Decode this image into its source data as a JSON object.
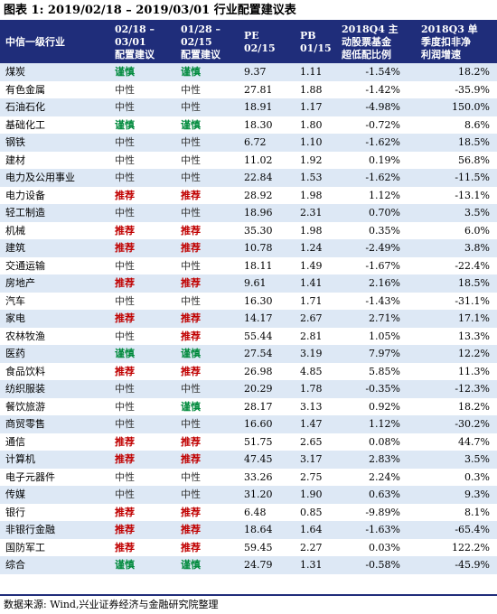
{
  "title": "图表 1:  2019/02/18 – 2019/03/01 行业配置建议表",
  "source": "数据来源:  Wind,兴业证券经济与金融研究院整理",
  "colors": {
    "header_bg": "#1f2d7a",
    "alt_row": "#dde8f5",
    "recommend": "#c00000",
    "cautious": "#008a3c",
    "neutral": "#333333"
  },
  "headers": {
    "name": [
      "中信一级行业"
    ],
    "rec_current": [
      "02/18   –",
      "03/01",
      "配置建议"
    ],
    "rec_previous": [
      "01/28   –",
      "02/15",
      "配置建议"
    ],
    "pe": [
      "PE",
      "02/15"
    ],
    "pb": [
      "PB",
      "01/15"
    ],
    "fund": [
      "2018Q4  主",
      "动股票基金",
      "超低配比例"
    ],
    "profit": [
      "2018Q3  单",
      "季度扣非净",
      "利润增速"
    ]
  },
  "rows": [
    {
      "name": "煤炭",
      "rec1": "谨慎",
      "rec2": "谨慎",
      "pe": "9.37",
      "pb": "1.11",
      "fund": "-1.54%",
      "profit": "18.2%"
    },
    {
      "name": "有色金属",
      "rec1": "中性",
      "rec2": "中性",
      "pe": "27.81",
      "pb": "1.88",
      "fund": "-1.42%",
      "profit": "-35.9%"
    },
    {
      "name": "石油石化",
      "rec1": "中性",
      "rec2": "中性",
      "pe": "18.91",
      "pb": "1.17",
      "fund": "-4.98%",
      "profit": "150.0%"
    },
    {
      "name": "基础化工",
      "rec1": "谨慎",
      "rec2": "谨慎",
      "pe": "18.30",
      "pb": "1.80",
      "fund": "-0.72%",
      "profit": "8.6%"
    },
    {
      "name": "钢铁",
      "rec1": "中性",
      "rec2": "中性",
      "pe": "6.72",
      "pb": "1.10",
      "fund": "-1.62%",
      "profit": "18.5%"
    },
    {
      "name": "建材",
      "rec1": "中性",
      "rec2": "中性",
      "pe": "11.02",
      "pb": "1.92",
      "fund": "0.19%",
      "profit": "56.8%"
    },
    {
      "name": "电力及公用事业",
      "rec1": "中性",
      "rec2": "中性",
      "pe": "22.84",
      "pb": "1.53",
      "fund": "-1.62%",
      "profit": "-11.5%"
    },
    {
      "name": "电力设备",
      "rec1": "推荐",
      "rec2": "推荐",
      "pe": "28.92",
      "pb": "1.98",
      "fund": "1.12%",
      "profit": "-13.1%"
    },
    {
      "name": "轻工制造",
      "rec1": "中性",
      "rec2": "中性",
      "pe": "18.96",
      "pb": "2.31",
      "fund": "0.70%",
      "profit": "3.5%"
    },
    {
      "name": "机械",
      "rec1": "推荐",
      "rec2": "推荐",
      "pe": "35.30",
      "pb": "1.98",
      "fund": "0.35%",
      "profit": "6.0%"
    },
    {
      "name": "建筑",
      "rec1": "推荐",
      "rec2": "推荐",
      "pe": "10.78",
      "pb": "1.24",
      "fund": "-2.49%",
      "profit": "3.8%"
    },
    {
      "name": "交通运输",
      "rec1": "中性",
      "rec2": "中性",
      "pe": "18.11",
      "pb": "1.49",
      "fund": "-1.67%",
      "profit": "-22.4%"
    },
    {
      "name": "房地产",
      "rec1": "推荐",
      "rec2": "推荐",
      "pe": "9.61",
      "pb": "1.41",
      "fund": "2.16%",
      "profit": "18.5%"
    },
    {
      "name": "汽车",
      "rec1": "中性",
      "rec2": "中性",
      "pe": "16.30",
      "pb": "1.71",
      "fund": "-1.43%",
      "profit": "-31.1%"
    },
    {
      "name": "家电",
      "rec1": "推荐",
      "rec2": "推荐",
      "pe": "14.17",
      "pb": "2.67",
      "fund": "2.71%",
      "profit": "17.1%"
    },
    {
      "name": "农林牧渔",
      "rec1": "中性",
      "rec2": "推荐",
      "pe": "55.44",
      "pb": "2.81",
      "fund": "1.05%",
      "profit": "13.3%"
    },
    {
      "name": "医药",
      "rec1": "谨慎",
      "rec2": "谨慎",
      "pe": "27.54",
      "pb": "3.19",
      "fund": "7.97%",
      "profit": "12.2%"
    },
    {
      "name": "食品饮料",
      "rec1": "推荐",
      "rec2": "推荐",
      "pe": "26.98",
      "pb": "4.85",
      "fund": "5.85%",
      "profit": "11.3%"
    },
    {
      "name": "纺织服装",
      "rec1": "中性",
      "rec2": "中性",
      "pe": "20.29",
      "pb": "1.78",
      "fund": "-0.35%",
      "profit": "-12.3%"
    },
    {
      "name": "餐饮旅游",
      "rec1": "中性",
      "rec2": "谨慎",
      "pe": "28.17",
      "pb": "3.13",
      "fund": "0.92%",
      "profit": "18.2%"
    },
    {
      "name": "商贸零售",
      "rec1": "中性",
      "rec2": "中性",
      "pe": "16.60",
      "pb": "1.47",
      "fund": "1.12%",
      "profit": "-30.2%"
    },
    {
      "name": "通信",
      "rec1": "推荐",
      "rec2": "推荐",
      "pe": "51.75",
      "pb": "2.65",
      "fund": "0.08%",
      "profit": "44.7%"
    },
    {
      "name": "计算机",
      "rec1": "推荐",
      "rec2": "推荐",
      "pe": "47.45",
      "pb": "3.17",
      "fund": "2.83%",
      "profit": "3.5%"
    },
    {
      "name": "电子元器件",
      "rec1": "中性",
      "rec2": "中性",
      "pe": "33.26",
      "pb": "2.75",
      "fund": "2.24%",
      "profit": "0.3%"
    },
    {
      "name": "传媒",
      "rec1": "中性",
      "rec2": "中性",
      "pe": "31.20",
      "pb": "1.90",
      "fund": "0.63%",
      "profit": "9.3%"
    },
    {
      "name": "银行",
      "rec1": "推荐",
      "rec2": "推荐",
      "pe": "6.48",
      "pb": "0.85",
      "fund": "-9.89%",
      "profit": "8.1%"
    },
    {
      "name": "非银行金融",
      "rec1": "推荐",
      "rec2": "推荐",
      "pe": "18.64",
      "pb": "1.64",
      "fund": "-1.63%",
      "profit": "-65.4%"
    },
    {
      "name": "国防军工",
      "rec1": "推荐",
      "rec2": "推荐",
      "pe": "59.45",
      "pb": "2.27",
      "fund": "0.03%",
      "profit": "122.2%"
    },
    {
      "name": "综合",
      "rec1": "谨慎",
      "rec2": "谨慎",
      "pe": "24.79",
      "pb": "1.31",
      "fund": "-0.58%",
      "profit": "-45.9%"
    }
  ]
}
